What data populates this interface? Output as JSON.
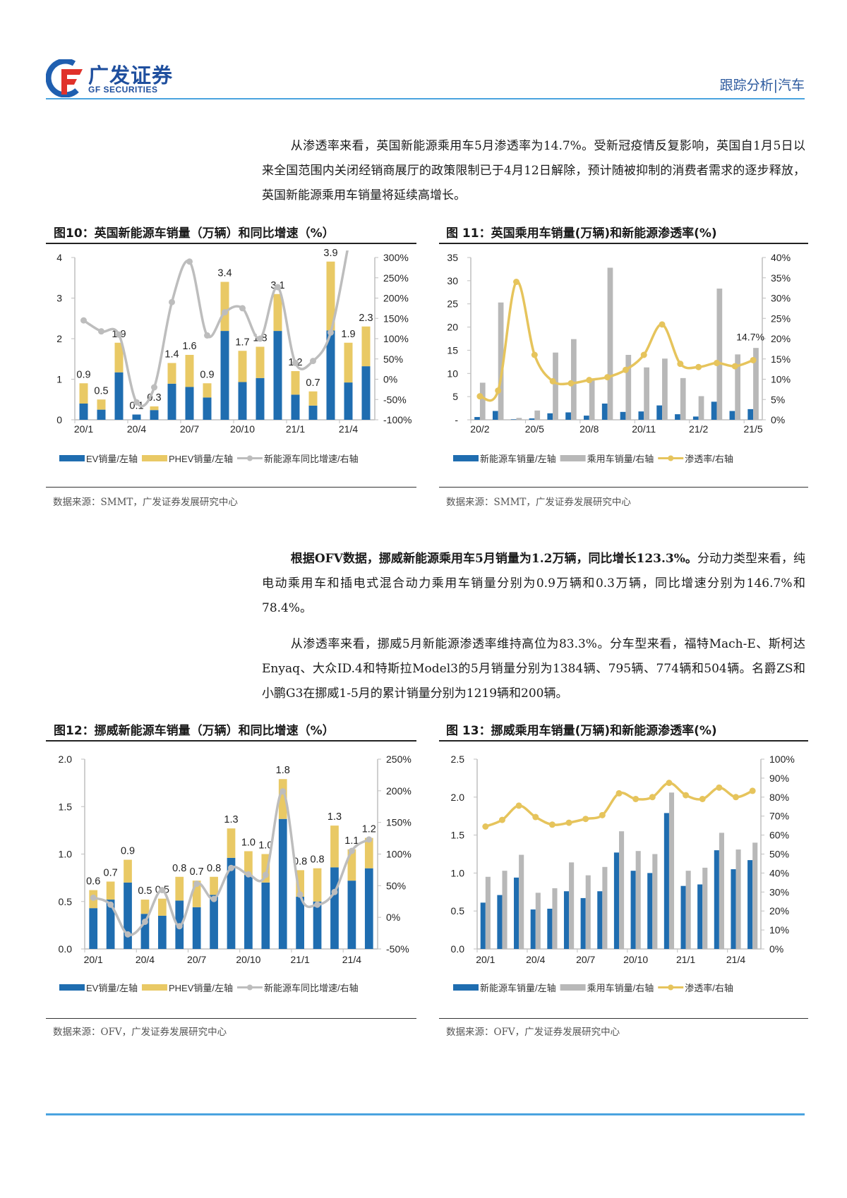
{
  "header": {
    "logo_cn": "广发证券",
    "logo_en": "GF SECURITIES",
    "section": "跟踪分析|汽车"
  },
  "paragraphs": {
    "p1": "从渗透率来看，英国新能源乘用车5月渗透率为14.7%。受新冠疫情反复影响，英国自1月5日以来全国范围内关闭经销商展厅的政策限制已于4月12日解除，预计随被抑制的消费者需求的逐步释放，英国新能源乘用车销量将延续高增长。",
    "p2_bold": "根据OFV数据，挪威新能源乘用车5月销量为1.2万辆，同比增长123.3%。",
    "p2_rest": "分动力类型来看，纯电动乘用车和插电式混合动力乘用车销量分别为0.9万辆和0.3万辆，同比增速分别为146.7%和78.4%。",
    "p3": "从渗透率来看，挪威5月新能源渗透率维持高位为83.3%。分车型来看，福特Mach-E、斯柯达Enyaq、大众ID.4和特斯拉Model3的5月销量分别为1384辆、795辆、774辆和504辆。名爵ZS和小鹏G3在挪威1-5月的累计销量分别为1219辆和200辆。"
  },
  "figures": [
    {
      "title": "图10：英国新能源车销量（万辆）和同比增速（%）",
      "source": "数据来源：SMMT，广发证券发展研究中心"
    },
    {
      "title": "图 11：英国乘用车销量(万辆)和新能源渗透率(%)",
      "source": "数据来源：SMMT，广发证券发展研究中心"
    },
    {
      "title": "图12：挪威新能源车销量（万辆）和同比增速（%）",
      "source": "数据来源：OFV，广发证券发展研究中心"
    },
    {
      "title": "图 13：挪威乘用车销量(万辆)和新能源渗透率(%)",
      "source": "数据来源：OFV，广发证券发展研究中心"
    }
  ],
  "chart_data": [
    {
      "type": "bar",
      "bar_mode": "stacked",
      "title": "图10：英国新能源车销量（万辆）和同比增速（%）",
      "categories": [
        "20/1",
        "20/2",
        "20/3",
        "20/4",
        "20/5",
        "20/6",
        "20/7",
        "20/8",
        "20/9",
        "20/10",
        "20/11",
        "20/12",
        "21/1",
        "21/2",
        "21/3",
        "21/4",
        "21/5"
      ],
      "x_tick_labels": [
        "20/1",
        "20/4",
        "20/7",
        "20/10",
        "21/1",
        "21/4"
      ],
      "left_axis": {
        "range": [
          0,
          4
        ],
        "ticks": [
          "0",
          "1",
          "2",
          "3",
          "4"
        ]
      },
      "right_axis": {
        "range": [
          -100,
          300
        ],
        "ticks": [
          "-100%",
          "-50%",
          "0%",
          "50%",
          "100%",
          "150%",
          "200%",
          "250%",
          "300%"
        ]
      },
      "series": [
        {
          "name": "EV销量/左轴",
          "kind": "bar",
          "axis": "left",
          "color": "#1f6db0",
          "values": [
            0.4,
            0.25,
            1.17,
            0.13,
            0.24,
            0.89,
            0.81,
            0.55,
            2.19,
            0.93,
            1.03,
            2.19,
            0.62,
            0.35,
            2.2,
            0.92,
            1.32
          ]
        },
        {
          "name": "PHEV销量/左轴",
          "kind": "bar",
          "axis": "left",
          "color": "#e9c965",
          "values": [
            0.5,
            0.25,
            0.73,
            0.0,
            0.09,
            0.51,
            0.79,
            0.35,
            1.21,
            0.77,
            0.77,
            0.91,
            0.58,
            0.35,
            1.7,
            0.98,
            0.98
          ]
        },
        {
          "name": "新能源车同比增速/右轴",
          "kind": "line",
          "axis": "right",
          "color": "#bdbdbd",
          "values": [
            145,
            118,
            110,
            -57,
            -20,
            190,
            290,
            108,
            165,
            175,
            100,
            227,
            40,
            45,
            115,
            330,
            null
          ]
        }
      ],
      "data_labels": [
        "0.9",
        "0.5",
        "1.9",
        "0.1",
        "0.3",
        "1.4",
        "1.6",
        "0.9",
        "3.4",
        "1.7",
        "1.8",
        "3.1",
        "1.2",
        "0.7",
        "3.9",
        "1.9",
        "2.3"
      ],
      "grid": false,
      "legend": "bottom"
    },
    {
      "type": "bar",
      "bar_mode": "grouped",
      "title": "图 11：英国乘用车销量(万辆)和新能源渗透率(%)",
      "categories": [
        "20/2",
        "20/3",
        "20/4",
        "20/5",
        "20/6",
        "20/7",
        "20/8",
        "20/9",
        "20/10",
        "20/11",
        "20/12",
        "21/1",
        "21/2",
        "21/3",
        "21/4",
        "21/5"
      ],
      "x_tick_labels": [
        "20/2",
        "20/5",
        "20/8",
        "20/11",
        "21/2",
        "21/5"
      ],
      "left_axis": {
        "range": [
          0,
          35
        ],
        "ticks": [
          "-",
          "5",
          "10",
          "15",
          "20",
          "25",
          "30",
          "35"
        ]
      },
      "right_axis": {
        "range": [
          0,
          40
        ],
        "ticks": [
          "0%",
          "5%",
          "10%",
          "15%",
          "20%",
          "25%",
          "30%",
          "35%",
          "40%"
        ]
      },
      "series": [
        {
          "name": "新能源车销量/左轴",
          "kind": "bar",
          "axis": "left",
          "color": "#1f6db0",
          "values": [
            0.6,
            1.9,
            0.1,
            0.3,
            1.4,
            1.6,
            0.9,
            3.5,
            1.7,
            1.8,
            3.1,
            1.2,
            0.7,
            3.9,
            1.9,
            2.3
          ]
        },
        {
          "name": "乘用车销量/右轴",
          "kind": "bar",
          "axis": "left",
          "color": "#b8b8b8",
          "values": [
            8.0,
            25.3,
            0.4,
            2.0,
            14.5,
            17.4,
            8.8,
            32.8,
            14.0,
            11.3,
            13.2,
            9.0,
            5.1,
            28.3,
            14.1,
            15.5
          ]
        },
        {
          "name": "渗透率/右轴",
          "kind": "line",
          "axis": "right",
          "color": "#e6c45c",
          "values": [
            5.8,
            7.2,
            34.0,
            16.0,
            9.5,
            9.0,
            9.8,
            10.5,
            12.3,
            16.0,
            23.5,
            13.8,
            13.0,
            14.0,
            13.2,
            14.7
          ]
        }
      ],
      "annotation": {
        "series": 2,
        "category": "21/5",
        "text": "14.7%"
      },
      "grid": false,
      "legend": "bottom"
    },
    {
      "type": "bar",
      "bar_mode": "stacked",
      "title": "图12：挪威新能源车销量（万辆）和同比增速（%）",
      "categories": [
        "20/1",
        "20/2",
        "20/3",
        "20/4",
        "20/5",
        "20/6",
        "20/7",
        "20/8",
        "20/9",
        "20/10",
        "20/11",
        "20/12",
        "21/1",
        "21/2",
        "21/3",
        "21/4",
        "21/5"
      ],
      "x_tick_labels": [
        "20/1",
        "20/4",
        "20/7",
        "20/10",
        "21/1",
        "21/4"
      ],
      "left_axis": {
        "range": [
          0,
          2
        ],
        "ticks": [
          "0.0",
          "0.5",
          "1.0",
          "1.5",
          "2.0"
        ]
      },
      "right_axis": {
        "range": [
          -50,
          250
        ],
        "ticks": [
          "-50%",
          "0%",
          "50%",
          "100%",
          "150%",
          "200%",
          "250%"
        ]
      },
      "series": [
        {
          "name": "EV销量/左轴",
          "kind": "bar",
          "axis": "left",
          "color": "#1f6db0",
          "values": [
            0.43,
            0.52,
            0.7,
            0.37,
            0.35,
            0.51,
            0.44,
            0.57,
            0.96,
            0.78,
            0.7,
            1.37,
            0.55,
            0.5,
            0.86,
            0.72,
            0.85
          ]
        },
        {
          "name": "PHEV销量/左轴",
          "kind": "bar",
          "axis": "left",
          "color": "#e9c965",
          "values": [
            0.19,
            0.19,
            0.24,
            0.15,
            0.18,
            0.25,
            0.28,
            0.19,
            0.31,
            0.25,
            0.3,
            0.42,
            0.28,
            0.35,
            0.44,
            0.33,
            0.32
          ]
        },
        {
          "name": "新能源车同比增速/右轴",
          "kind": "line",
          "axis": "right",
          "color": "#bdbdbd",
          "values": [
            31,
            20,
            -27,
            -7,
            43,
            -14,
            53,
            29,
            78,
            68,
            67,
            199,
            36,
            20,
            40,
            105,
            123
          ]
        }
      ],
      "data_labels": [
        "0.6",
        "0.7",
        "0.9",
        "0.5",
        "0.5",
        "0.8",
        "0.7",
        "0.8",
        "1.3",
        "1.0",
        "1.0",
        "1.8",
        "0.8",
        "0.8",
        "1.3",
        "1.1",
        "1.2"
      ],
      "grid": false,
      "legend": "bottom"
    },
    {
      "type": "bar",
      "bar_mode": "grouped",
      "title": "图 13：挪威乘用车销量(万辆)和新能源渗透率(%)",
      "categories": [
        "20/1",
        "20/2",
        "20/3",
        "20/4",
        "20/5",
        "20/6",
        "20/7",
        "20/8",
        "20/9",
        "20/10",
        "20/11",
        "20/12",
        "21/1",
        "21/2",
        "21/3",
        "21/4",
        "21/5"
      ],
      "x_tick_labels": [
        "20/1",
        "20/4",
        "20/7",
        "20/10",
        "21/1",
        "21/4"
      ],
      "left_axis": {
        "range": [
          0,
          2.5
        ],
        "ticks": [
          "0.0",
          "0.5",
          "1.0",
          "1.5",
          "2.0",
          "2.5"
        ]
      },
      "right_axis": {
        "range": [
          0,
          100
        ],
        "ticks": [
          "0%",
          "10%",
          "20%",
          "30%",
          "40%",
          "50%",
          "60%",
          "70%",
          "80%",
          "90%",
          "100%"
        ]
      },
      "series": [
        {
          "name": "新能源车销量/左轴",
          "kind": "bar",
          "axis": "left",
          "color": "#1f6db0",
          "values": [
            0.61,
            0.71,
            0.94,
            0.52,
            0.53,
            0.76,
            0.67,
            0.76,
            1.27,
            1.03,
            1.0,
            1.79,
            0.83,
            0.85,
            1.3,
            1.05,
            1.17
          ]
        },
        {
          "name": "乘用车销量/右轴",
          "kind": "bar",
          "axis": "left",
          "color": "#b8b8b8",
          "values": [
            0.95,
            1.03,
            1.24,
            0.74,
            0.8,
            1.14,
            0.97,
            1.08,
            1.55,
            1.29,
            1.25,
            2.06,
            1.03,
            1.07,
            1.53,
            1.31,
            1.4
          ]
        },
        {
          "name": "渗透率/右轴",
          "kind": "line",
          "axis": "right",
          "color": "#e6c45c",
          "values": [
            64.5,
            68,
            75.5,
            69.5,
            65.5,
            66.5,
            68.5,
            70.5,
            82,
            79,
            80,
            87.5,
            81,
            79,
            85,
            80,
            83.3
          ]
        }
      ],
      "grid": false,
      "legend": "bottom"
    }
  ]
}
